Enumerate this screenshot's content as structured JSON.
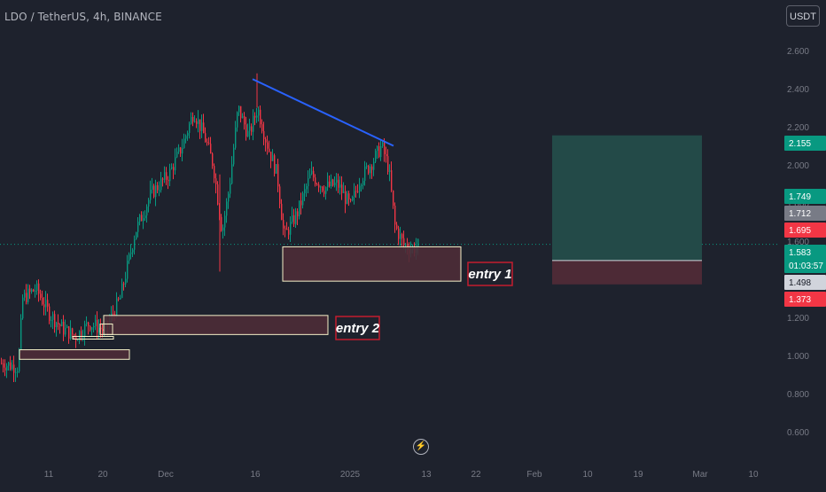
{
  "header": {
    "symbol": "LDO / TetherUS, 4h, BINANCE",
    "currency_button": "USDT"
  },
  "icons": {
    "lightning": "lightning-icon"
  },
  "price_axis": {
    "ticks": [
      "2.600",
      "2.400",
      "2.200",
      "2.000",
      "1.800",
      "1.600",
      "1.400",
      "1.200",
      "1.000",
      "0.800",
      "0.600"
    ],
    "labels": [
      {
        "name": "take-profit",
        "text": "2.155",
        "value": 2.155,
        "bg": "#089981",
        "fg": "#ffffff"
      },
      {
        "name": "green-level",
        "text": "1.749",
        "value": 1.749,
        "bg": "#089981",
        "fg": "#ffffff"
      },
      {
        "name": "grey-level",
        "text": "1.712",
        "value": 1.712,
        "bg": "#787b86",
        "fg": "#ffffff"
      },
      {
        "name": "red-level",
        "text": "1.695",
        "value": 1.695,
        "bg": "#f23645",
        "fg": "#ffffff"
      },
      {
        "name": "last-price",
        "text": "1.583",
        "value": 1.583,
        "bg": "#089981",
        "fg": "#ffffff"
      },
      {
        "name": "countdown",
        "text": "01:03:57",
        "bg": "#089981",
        "fg": "#ffffff"
      },
      {
        "name": "position-entry",
        "text": "1.498",
        "value": 1.498,
        "bg": "#d1d4dc",
        "fg": "#131722"
      },
      {
        "name": "stop-loss",
        "text": "1.373",
        "value": 1.373,
        "bg": "#f23645",
        "fg": "#ffffff"
      }
    ]
  },
  "time_axis": {
    "ticks": [
      "11",
      "20",
      "Dec",
      "16",
      "2025",
      "13",
      "22",
      "Feb",
      "10",
      "19",
      "Mar",
      "10"
    ]
  },
  "annotations": {
    "entry1": "entry 1",
    "entry2": "entry 2"
  },
  "zones": [
    {
      "name": "entry-1-zone",
      "low": 1.39,
      "high": 1.57
    },
    {
      "name": "entry-2-zone",
      "low": 1.11,
      "high": 1.21
    },
    {
      "name": "base-zone",
      "low": 0.98,
      "high": 1.03
    }
  ],
  "trendline": {
    "from_price": 2.45,
    "to_price": 2.1
  },
  "position": {
    "take_profit": 2.155,
    "entry": 1.498,
    "stop": 1.373
  },
  "colors": {
    "background": "#1e222d",
    "up": "#089981",
    "down": "#f23645",
    "trendline": "#2962ff",
    "zone_fill": "#4c2c37",
    "zone_border": "#f5f0c8",
    "profit_fill": "#234a48",
    "loss_fill": "#4d2a36",
    "label_border": "#c41c2f",
    "text": "#b2b5be"
  }
}
